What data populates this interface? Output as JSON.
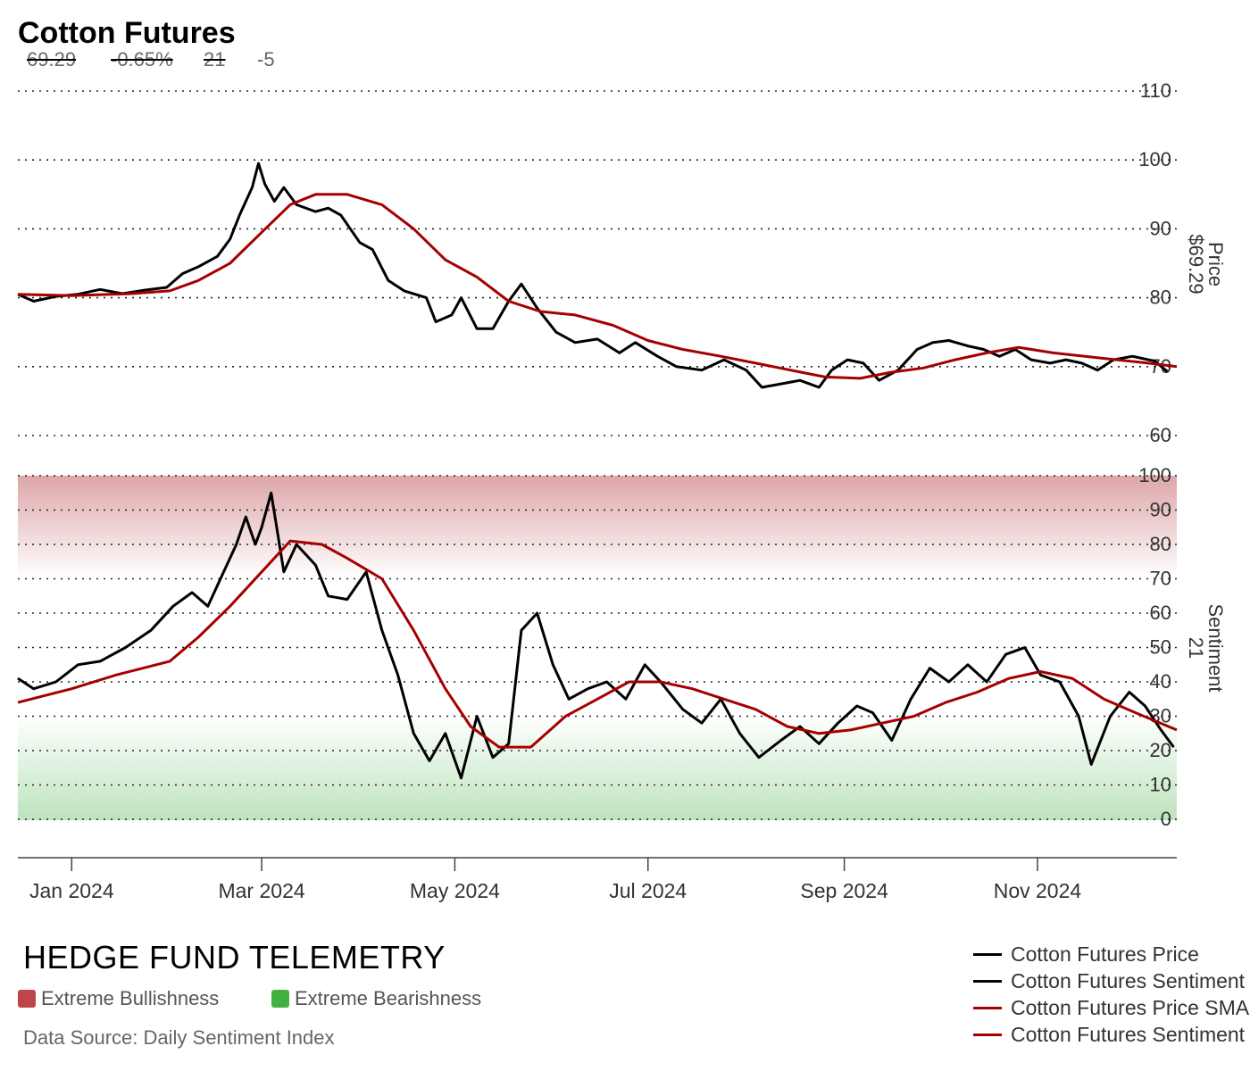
{
  "header": {
    "title": "Cotton Futures",
    "price": "69.29",
    "change_pct": "-0.65%",
    "sentiment": "21",
    "sentiment_change": "-5"
  },
  "footer": {
    "brand": "HEDGE FUND TELEMETRY",
    "bullish_label": "Extreme Bullishness",
    "bearish_label": "Extreme Bearishness",
    "source": "Data Source: Daily Sentiment Index"
  },
  "legend": [
    {
      "label": "Cotton Futures Price",
      "color": "#000000"
    },
    {
      "label": "Cotton Futures Sentiment",
      "color": "#000000"
    },
    {
      "label": "Cotton Futures Price SMA",
      "color": "#a50000"
    },
    {
      "label": "Cotton Futures Sentiment SMA",
      "color": "#a50000"
    }
  ],
  "colors": {
    "price": "#000000",
    "sma": "#a50000",
    "bull": "#c0454a",
    "bear": "#43b043"
  },
  "chart_data": {
    "type": "line",
    "x_range": [
      "2023-12-15",
      "2024-12-15"
    ],
    "x_ticks": [
      {
        "date": "2024-01-01",
        "label": "Jan 2024"
      },
      {
        "date": "2024-03-01",
        "label": "Mar 2024"
      },
      {
        "date": "2024-05-01",
        "label": "May 2024"
      },
      {
        "date": "2024-07-01",
        "label": "Jul 2024"
      },
      {
        "date": "2024-09-01",
        "label": "Sep 2024"
      },
      {
        "date": "2024-11-01",
        "label": "Nov 2024"
      }
    ],
    "price_panel": {
      "axis_label": "Price",
      "axis_value": "$69.29",
      "ylim": [
        60,
        110
      ],
      "y_ticks": [
        60,
        70,
        80,
        90,
        100,
        110
      ],
      "series": [
        {
          "name": "Cotton Futures Price",
          "points": [
            [
              "2023-12-15",
              80.5
            ],
            [
              "2023-12-20",
              79.5
            ],
            [
              "2023-12-27",
              80.2
            ],
            [
              "2024-01-03",
              80.5
            ],
            [
              "2024-01-10",
              81.2
            ],
            [
              "2024-01-17",
              80.6
            ],
            [
              "2024-01-24",
              81.1
            ],
            [
              "2024-01-31",
              81.5
            ],
            [
              "2024-02-05",
              83.5
            ],
            [
              "2024-02-10",
              84.5
            ],
            [
              "2024-02-16",
              86.0
            ],
            [
              "2024-02-20",
              88.5
            ],
            [
              "2024-02-23",
              92.0
            ],
            [
              "2024-02-27",
              96.0
            ],
            [
              "2024-02-29",
              99.5
            ],
            [
              "2024-03-02",
              96.5
            ],
            [
              "2024-03-05",
              94.0
            ],
            [
              "2024-03-08",
              96.0
            ],
            [
              "2024-03-12",
              93.5
            ],
            [
              "2024-03-18",
              92.5
            ],
            [
              "2024-03-22",
              93.0
            ],
            [
              "2024-03-26",
              92.0
            ],
            [
              "2024-04-01",
              88.0
            ],
            [
              "2024-04-05",
              87.0
            ],
            [
              "2024-04-10",
              82.5
            ],
            [
              "2024-04-15",
              81.0
            ],
            [
              "2024-04-22",
              80.0
            ],
            [
              "2024-04-25",
              76.5
            ],
            [
              "2024-04-30",
              77.5
            ],
            [
              "2024-05-03",
              80.0
            ],
            [
              "2024-05-08",
              75.5
            ],
            [
              "2024-05-13",
              75.5
            ],
            [
              "2024-05-18",
              79.5
            ],
            [
              "2024-05-22",
              82.0
            ],
            [
              "2024-05-27",
              78.5
            ],
            [
              "2024-06-02",
              75.0
            ],
            [
              "2024-06-08",
              73.5
            ],
            [
              "2024-06-15",
              74.0
            ],
            [
              "2024-06-22",
              72.0
            ],
            [
              "2024-06-27",
              73.5
            ],
            [
              "2024-07-04",
              71.5
            ],
            [
              "2024-07-10",
              70.0
            ],
            [
              "2024-07-18",
              69.5
            ],
            [
              "2024-07-25",
              71.0
            ],
            [
              "2024-08-01",
              69.5
            ],
            [
              "2024-08-06",
              67.0
            ],
            [
              "2024-08-12",
              67.5
            ],
            [
              "2024-08-18",
              68.0
            ],
            [
              "2024-08-24",
              67.0
            ],
            [
              "2024-08-28",
              69.5
            ],
            [
              "2024-09-02",
              71.0
            ],
            [
              "2024-09-07",
              70.5
            ],
            [
              "2024-09-12",
              68.0
            ],
            [
              "2024-09-18",
              69.5
            ],
            [
              "2024-09-24",
              72.5
            ],
            [
              "2024-09-29",
              73.5
            ],
            [
              "2024-10-04",
              73.8
            ],
            [
              "2024-10-10",
              73.0
            ],
            [
              "2024-10-15",
              72.5
            ],
            [
              "2024-10-20",
              71.5
            ],
            [
              "2024-10-25",
              72.5
            ],
            [
              "2024-10-30",
              71.0
            ],
            [
              "2024-11-05",
              70.5
            ],
            [
              "2024-11-10",
              71.0
            ],
            [
              "2024-11-15",
              70.5
            ],
            [
              "2024-11-20",
              69.5
            ],
            [
              "2024-11-25",
              71.0
            ],
            [
              "2024-12-01",
              71.5
            ],
            [
              "2024-12-08",
              70.8
            ],
            [
              "2024-12-12",
              69.3
            ]
          ]
        },
        {
          "name": "Cotton Futures Price SMA",
          "points": [
            [
              "2023-12-15",
              80.5
            ],
            [
              "2024-01-01",
              80.3
            ],
            [
              "2024-01-20",
              80.6
            ],
            [
              "2024-02-01",
              81.0
            ],
            [
              "2024-02-10",
              82.5
            ],
            [
              "2024-02-20",
              85.0
            ],
            [
              "2024-03-01",
              89.5
            ],
            [
              "2024-03-10",
              93.5
            ],
            [
              "2024-03-18",
              95.0
            ],
            [
              "2024-03-28",
              95.0
            ],
            [
              "2024-04-08",
              93.5
            ],
            [
              "2024-04-18",
              90.0
            ],
            [
              "2024-04-28",
              85.5
            ],
            [
              "2024-05-08",
              83.0
            ],
            [
              "2024-05-18",
              79.5
            ],
            [
              "2024-05-28",
              78.0
            ],
            [
              "2024-06-08",
              77.5
            ],
            [
              "2024-06-20",
              76.0
            ],
            [
              "2024-07-01",
              73.8
            ],
            [
              "2024-07-12",
              72.5
            ],
            [
              "2024-07-24",
              71.5
            ],
            [
              "2024-08-04",
              70.5
            ],
            [
              "2024-08-15",
              69.5
            ],
            [
              "2024-08-26",
              68.5
            ],
            [
              "2024-09-06",
              68.3
            ],
            [
              "2024-09-16",
              69.2
            ],
            [
              "2024-09-26",
              69.8
            ],
            [
              "2024-10-06",
              71.0
            ],
            [
              "2024-10-16",
              72.0
            ],
            [
              "2024-10-26",
              72.8
            ],
            [
              "2024-11-06",
              72.0
            ],
            [
              "2024-11-16",
              71.5
            ],
            [
              "2024-11-26",
              71.0
            ],
            [
              "2024-12-06",
              70.5
            ],
            [
              "2024-12-15",
              70.0
            ]
          ]
        }
      ]
    },
    "sentiment_panel": {
      "axis_label": "Sentiment",
      "axis_value": "21",
      "ylim": [
        0,
        100
      ],
      "y_ticks": [
        0,
        10,
        20,
        30,
        40,
        50,
        60,
        70,
        80,
        90,
        100
      ],
      "extreme_bullish_zone": [
        70,
        100
      ],
      "extreme_bearish_zone": [
        0,
        30
      ],
      "series": [
        {
          "name": "Cotton Futures Sentiment",
          "points": [
            [
              "2023-12-15",
              41
            ],
            [
              "2023-12-20",
              38
            ],
            [
              "2023-12-27",
              40
            ],
            [
              "2024-01-03",
              45
            ],
            [
              "2024-01-10",
              46
            ],
            [
              "2024-01-18",
              50
            ],
            [
              "2024-01-26",
              55
            ],
            [
              "2024-02-02",
              62
            ],
            [
              "2024-02-08",
              66
            ],
            [
              "2024-02-13",
              62
            ],
            [
              "2024-02-18",
              72
            ],
            [
              "2024-02-22",
              80
            ],
            [
              "2024-02-25",
              88
            ],
            [
              "2024-02-28",
              80
            ],
            [
              "2024-03-01",
              85
            ],
            [
              "2024-03-04",
              95
            ],
            [
              "2024-03-08",
              72
            ],
            [
              "2024-03-12",
              80
            ],
            [
              "2024-03-18",
              74
            ],
            [
              "2024-03-22",
              65
            ],
            [
              "2024-03-28",
              64
            ],
            [
              "2024-04-03",
              72
            ],
            [
              "2024-04-08",
              55
            ],
            [
              "2024-04-13",
              42
            ],
            [
              "2024-04-18",
              25
            ],
            [
              "2024-04-23",
              17
            ],
            [
              "2024-04-28",
              25
            ],
            [
              "2024-05-03",
              12
            ],
            [
              "2024-05-08",
              30
            ],
            [
              "2024-05-13",
              18
            ],
            [
              "2024-05-18",
              22
            ],
            [
              "2024-05-22",
              55
            ],
            [
              "2024-05-27",
              60
            ],
            [
              "2024-06-01",
              45
            ],
            [
              "2024-06-06",
              35
            ],
            [
              "2024-06-12",
              38
            ],
            [
              "2024-06-18",
              40
            ],
            [
              "2024-06-24",
              35
            ],
            [
              "2024-06-30",
              45
            ],
            [
              "2024-07-05",
              40
            ],
            [
              "2024-07-12",
              32
            ],
            [
              "2024-07-18",
              28
            ],
            [
              "2024-07-24",
              35
            ],
            [
              "2024-07-30",
              25
            ],
            [
              "2024-08-05",
              18
            ],
            [
              "2024-08-12",
              23
            ],
            [
              "2024-08-18",
              27
            ],
            [
              "2024-08-24",
              22
            ],
            [
              "2024-08-30",
              28
            ],
            [
              "2024-09-05",
              33
            ],
            [
              "2024-09-10",
              31
            ],
            [
              "2024-09-16",
              23
            ],
            [
              "2024-09-22",
              35
            ],
            [
              "2024-09-28",
              44
            ],
            [
              "2024-10-04",
              40
            ],
            [
              "2024-10-10",
              45
            ],
            [
              "2024-10-16",
              40
            ],
            [
              "2024-10-22",
              48
            ],
            [
              "2024-10-28",
              50
            ],
            [
              "2024-11-02",
              42
            ],
            [
              "2024-11-08",
              40
            ],
            [
              "2024-11-14",
              30
            ],
            [
              "2024-11-18",
              16
            ],
            [
              "2024-11-24",
              30
            ],
            [
              "2024-11-30",
              37
            ],
            [
              "2024-12-05",
              33
            ],
            [
              "2024-12-10",
              26
            ],
            [
              "2024-12-14",
              21
            ]
          ]
        },
        {
          "name": "Cotton Futures Sentiment SMA",
          "points": [
            [
              "2023-12-15",
              34
            ],
            [
              "2024-01-01",
              38
            ],
            [
              "2024-01-15",
              42
            ],
            [
              "2024-02-01",
              46
            ],
            [
              "2024-02-10",
              53
            ],
            [
              "2024-02-20",
              62
            ],
            [
              "2024-03-01",
              72
            ],
            [
              "2024-03-10",
              81
            ],
            [
              "2024-03-20",
              80
            ],
            [
              "2024-03-28",
              76
            ],
            [
              "2024-04-08",
              70
            ],
            [
              "2024-04-18",
              55
            ],
            [
              "2024-04-28",
              38
            ],
            [
              "2024-05-06",
              27
            ],
            [
              "2024-05-15",
              21
            ],
            [
              "2024-05-25",
              21
            ],
            [
              "2024-06-05",
              30
            ],
            [
              "2024-06-15",
              35
            ],
            [
              "2024-06-25",
              40
            ],
            [
              "2024-07-05",
              40
            ],
            [
              "2024-07-15",
              38
            ],
            [
              "2024-07-25",
              35
            ],
            [
              "2024-08-04",
              32
            ],
            [
              "2024-08-14",
              27
            ],
            [
              "2024-08-24",
              25
            ],
            [
              "2024-09-03",
              26
            ],
            [
              "2024-09-13",
              28
            ],
            [
              "2024-09-23",
              30
            ],
            [
              "2024-10-03",
              34
            ],
            [
              "2024-10-13",
              37
            ],
            [
              "2024-10-23",
              41
            ],
            [
              "2024-11-02",
              43
            ],
            [
              "2024-11-12",
              41
            ],
            [
              "2024-11-22",
              35
            ],
            [
              "2024-12-02",
              31
            ],
            [
              "2024-12-15",
              26
            ]
          ]
        }
      ]
    }
  }
}
